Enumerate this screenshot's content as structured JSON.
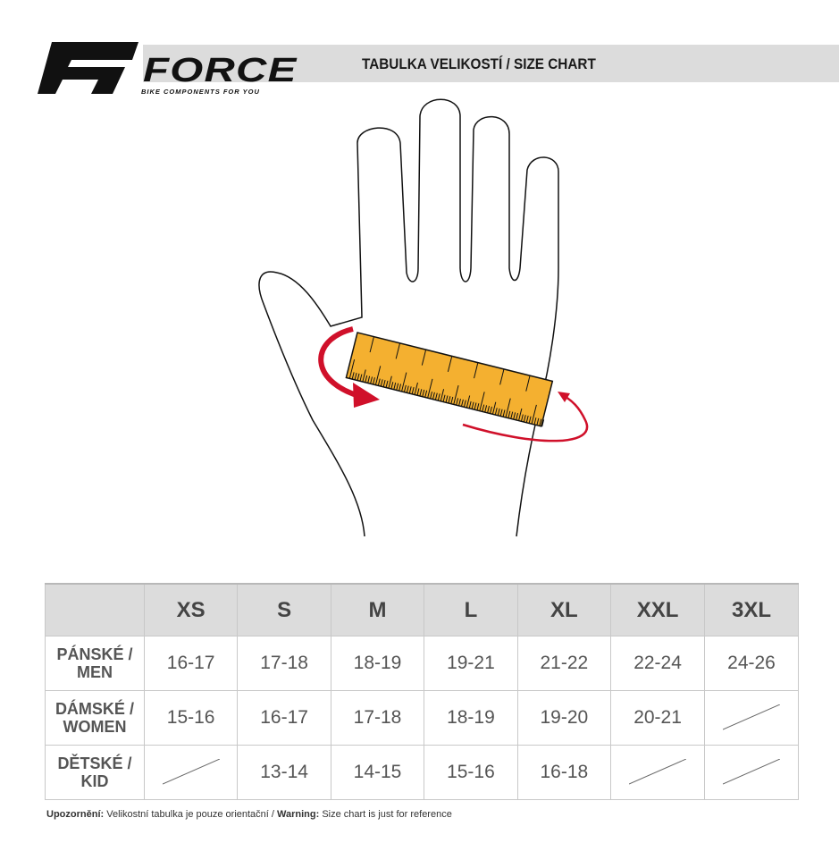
{
  "header": {
    "brand": "FORCE",
    "tagline": "BIKE COMPONENTS FOR YOU",
    "title": "TABULKA VELIKOSTÍ / SIZE CHART"
  },
  "table": {
    "sizes": [
      "XS",
      "S",
      "M",
      "L",
      "XL",
      "XXL",
      "3XL"
    ],
    "rows": [
      {
        "label_cz": "PÁNSKÉ /",
        "label_en": "MEN",
        "values": [
          "16-17",
          "17-18",
          "18-19",
          "19-21",
          "21-22",
          "22-24",
          "24-26"
        ]
      },
      {
        "label_cz": "DÁMSKÉ /",
        "label_en": "WOMEN",
        "values": [
          "15-16",
          "16-17",
          "17-18",
          "18-19",
          "19-20",
          "20-21",
          null
        ]
      },
      {
        "label_cz": "DĚTSKÉ /",
        "label_en": "KID",
        "values": [
          null,
          "13-14",
          "14-15",
          "15-16",
          "16-18",
          null,
          null
        ]
      }
    ]
  },
  "footer": {
    "warning_cz_label": "Upozornění:",
    "warning_cz": " Velikostní tabulka je pouze orientační / ",
    "warning_en_label": "Warning:",
    "warning_en": " Size chart is just for reference"
  },
  "colors": {
    "tape": "#f4b030",
    "arrow": "#d0102a",
    "header_bg": "#dcdcdc"
  }
}
